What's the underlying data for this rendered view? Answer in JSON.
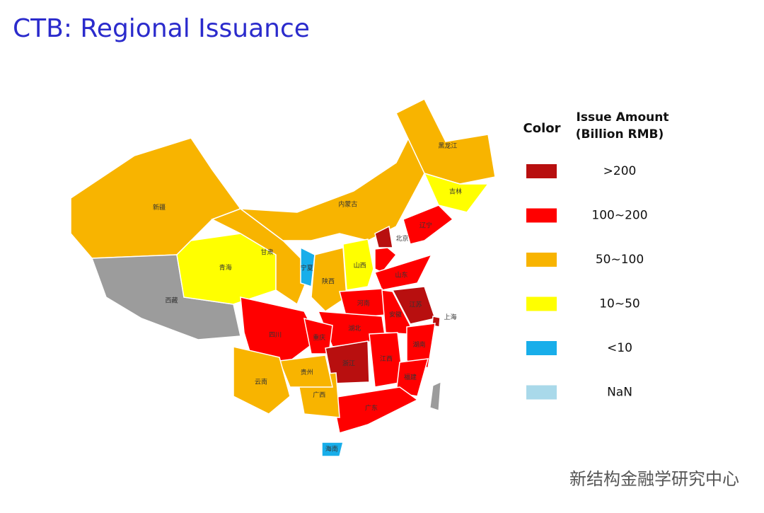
{
  "title": "CTB: Regional Issuance",
  "legend": {
    "color_header": "Color",
    "amount_header": [
      "Issue Amount",
      "(Billion RMB)"
    ],
    "items": [
      {
        "label": ">200",
        "color": "#b80f0f"
      },
      {
        "label": "100~200",
        "color": "#ff0000"
      },
      {
        "label": "50~100",
        "color": "#f8b400"
      },
      {
        "label": "10~50",
        "color": "#ffff00"
      },
      {
        "label": "<10",
        "color": "#18aeea"
      },
      {
        "label": "NaN",
        "color": "#a9d9ea"
      }
    ]
  },
  "provinces": [
    {
      "name": "新疆",
      "color": "#f8b400"
    },
    {
      "name": "西藏",
      "color": "#9c9c9c"
    },
    {
      "name": "青海",
      "color": "#ffff00"
    },
    {
      "name": "甘肃",
      "color": "#f8b400"
    },
    {
      "name": "内蒙古",
      "color": "#f8b400"
    },
    {
      "name": "黑龙江",
      "color": "#f8b400"
    },
    {
      "name": "吉林",
      "color": "#ffff00"
    },
    {
      "name": "辽宁",
      "color": "#ff0000"
    },
    {
      "name": "北京",
      "color": "#b80f0f"
    },
    {
      "name": "宁夏",
      "color": "#18aeea"
    },
    {
      "name": "陕西",
      "color": "#f8b400"
    },
    {
      "name": "山西",
      "color": "#ffff00"
    },
    {
      "name": "山东",
      "color": "#ff0000"
    },
    {
      "name": "河南",
      "color": "#ff0000"
    },
    {
      "name": "江苏",
      "color": "#b80f0f"
    },
    {
      "name": "上海",
      "color": "#b80f0f"
    },
    {
      "name": "安徽",
      "color": "#ff0000"
    },
    {
      "name": "湖北",
      "color": "#ff0000"
    },
    {
      "name": "四川",
      "color": "#ff0000"
    },
    {
      "name": "重庆",
      "color": "#ff0000"
    },
    {
      "name": "浙江",
      "color": "#b80f0f"
    },
    {
      "name": "江西",
      "color": "#ff0000"
    },
    {
      "name": "湖南",
      "color": "#ff0000"
    },
    {
      "name": "福建",
      "color": "#ff0000"
    },
    {
      "name": "广东",
      "color": "#ff0000"
    },
    {
      "name": "广西",
      "color": "#f8b400"
    },
    {
      "name": "贵州",
      "color": "#f8b400"
    },
    {
      "name": "云南",
      "color": "#f8b400"
    },
    {
      "name": "海南",
      "color": "#18aeea"
    }
  ],
  "watermark": "新结构金融学研究中心"
}
